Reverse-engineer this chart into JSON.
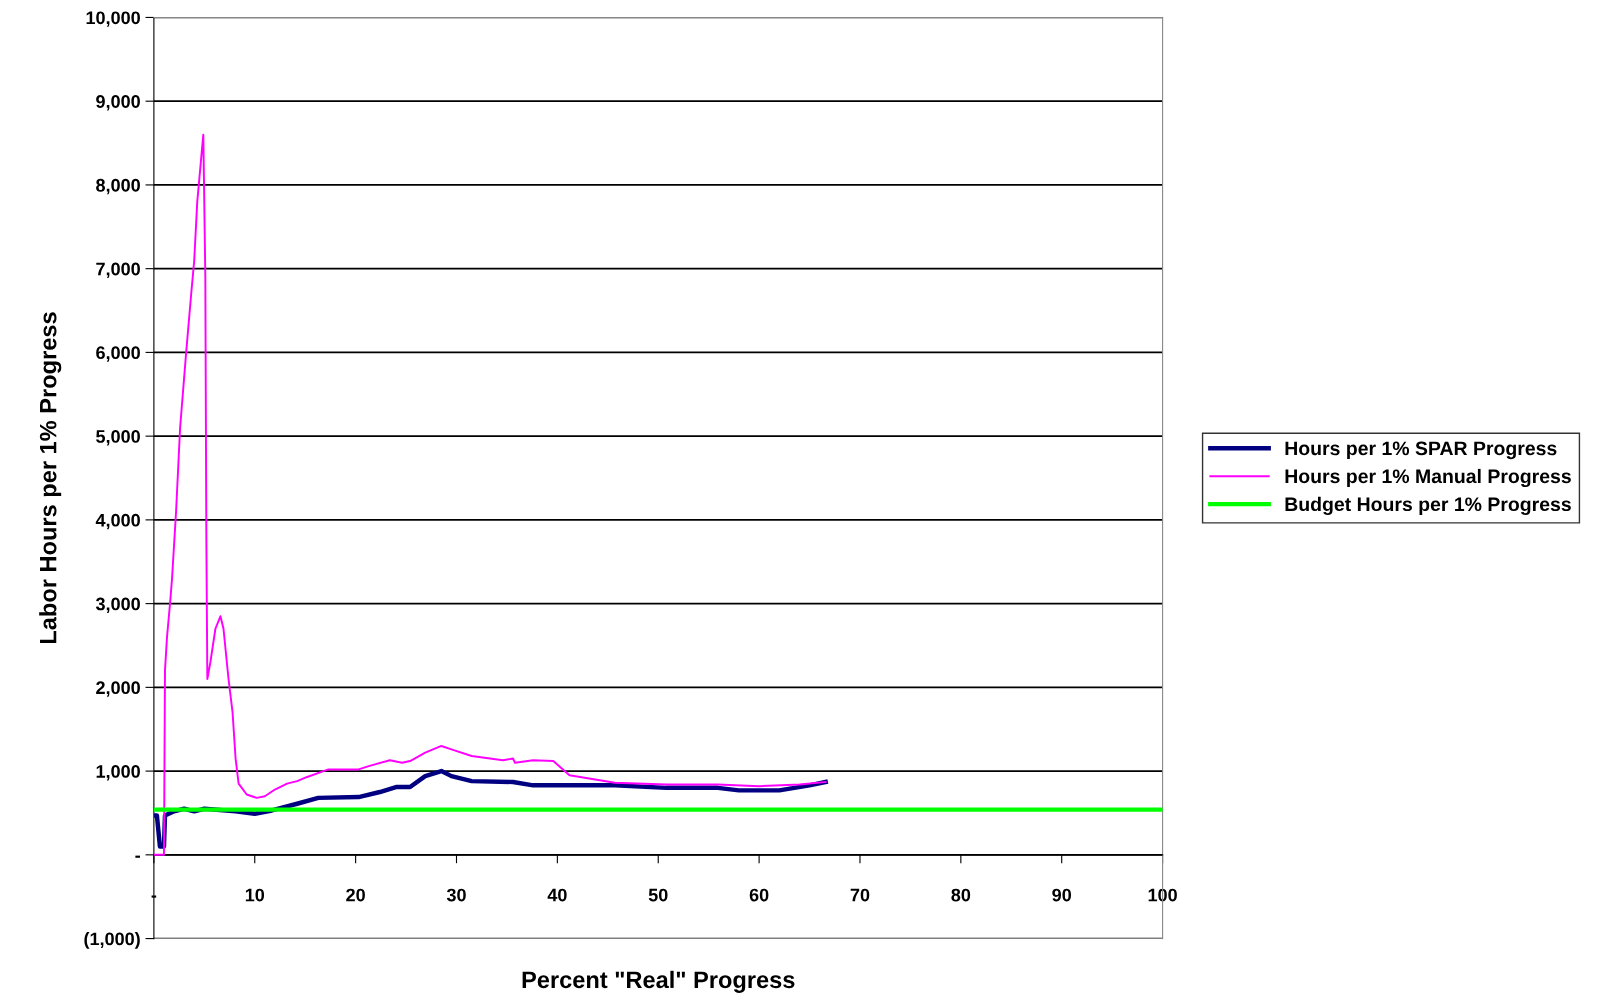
{
  "chart_data": {
    "type": "line",
    "xlabel": "Percent \"Real\" Progress",
    "ylabel": "Labor Hours per 1% Progress",
    "xlim": [
      0,
      100
    ],
    "xticks": [
      {
        "value": 0,
        "label": "-"
      },
      10,
      20,
      30,
      40,
      50,
      60,
      70,
      80,
      90,
      100
    ],
    "ylim": [
      -1000,
      10000
    ],
    "yticks": [
      {
        "value": -1000,
        "label": "(1,000)"
      },
      {
        "value": 0,
        "label": "-"
      },
      {
        "value": 1000,
        "label": "1,000"
      },
      {
        "value": 2000,
        "label": "2,000"
      },
      {
        "value": 3000,
        "label": "3,000"
      },
      {
        "value": 4000,
        "label": "4,000"
      },
      {
        "value": 5000,
        "label": "5,000"
      },
      {
        "value": 6000,
        "label": "6,000"
      },
      {
        "value": 7000,
        "label": "7,000"
      },
      {
        "value": 8000,
        "label": "8,000"
      },
      {
        "value": 9000,
        "label": "9,000"
      },
      {
        "value": 10000,
        "label": "10,000"
      }
    ],
    "grid": "y",
    "legend": "right",
    "marker": "none",
    "line_style": "solid",
    "series": [
      {
        "name": "Hours per 1% SPAR Progress",
        "color": "#000080",
        "x": [
          0,
          0.3,
          0.6,
          1.0,
          1.1,
          2.0,
          3,
          4,
          5,
          8.1,
          10,
          11.7,
          14.2,
          16.3,
          20.3,
          22.4,
          24,
          25.4,
          26.9,
          28.5,
          29.5,
          31.5,
          35.6,
          37.6,
          45.7,
          50.8,
          55.9,
          58,
          62,
          65,
          66.6
        ],
        "values": [
          470,
          470,
          100,
          100,
          470,
          520,
          550,
          520,
          550,
          520,
          490,
          530,
          610,
          680,
          690,
          750,
          810,
          810,
          940,
          1000,
          940,
          880,
          870,
          830,
          830,
          800,
          800,
          770,
          770,
          830,
          870
        ]
      },
      {
        "name": "Hours per 1% Manual Progress",
        "color": "#ff00ff",
        "x": [
          0,
          1.0,
          1.1,
          1.3,
          1.6,
          1.8,
          2.2,
          2.6,
          3.2,
          3.7,
          4.0,
          4.3,
          4.6,
          4.9,
          5.1,
          5.2,
          5.3,
          5.6,
          6.1,
          6.6,
          6.9,
          7.4,
          7.8,
          8.1,
          8.4,
          9.2,
          10.2,
          11,
          12,
          13.2,
          14.2,
          15.2,
          17.3,
          20.3,
          21.3,
          23.4,
          24.6,
          25.4,
          26.9,
          28.5,
          29.5,
          31.5,
          34.6,
          35.6,
          35.8,
          37.6,
          39.6,
          41.2,
          45.7,
          50.8,
          55.9,
          60,
          64,
          66.6
        ],
        "values": [
          0,
          0,
          2200,
          2600,
          3000,
          3300,
          4100,
          5100,
          6000,
          6700,
          7100,
          7800,
          8200,
          8600,
          6900,
          3800,
          2100,
          2300,
          2700,
          2850,
          2700,
          2100,
          1700,
          1150,
          850,
          720,
          680,
          700,
          780,
          850,
          880,
          930,
          1020,
          1020,
          1060,
          1130,
          1100,
          1120,
          1220,
          1300,
          1260,
          1180,
          1130,
          1150,
          1100,
          1130,
          1120,
          950,
          860,
          840,
          840,
          820,
          840,
          870
        ]
      },
      {
        "name": "Budget Hours per 1% Progress",
        "color": "#00ff00",
        "x": [
          0,
          100
        ],
        "values": [
          540,
          540
        ]
      }
    ]
  }
}
